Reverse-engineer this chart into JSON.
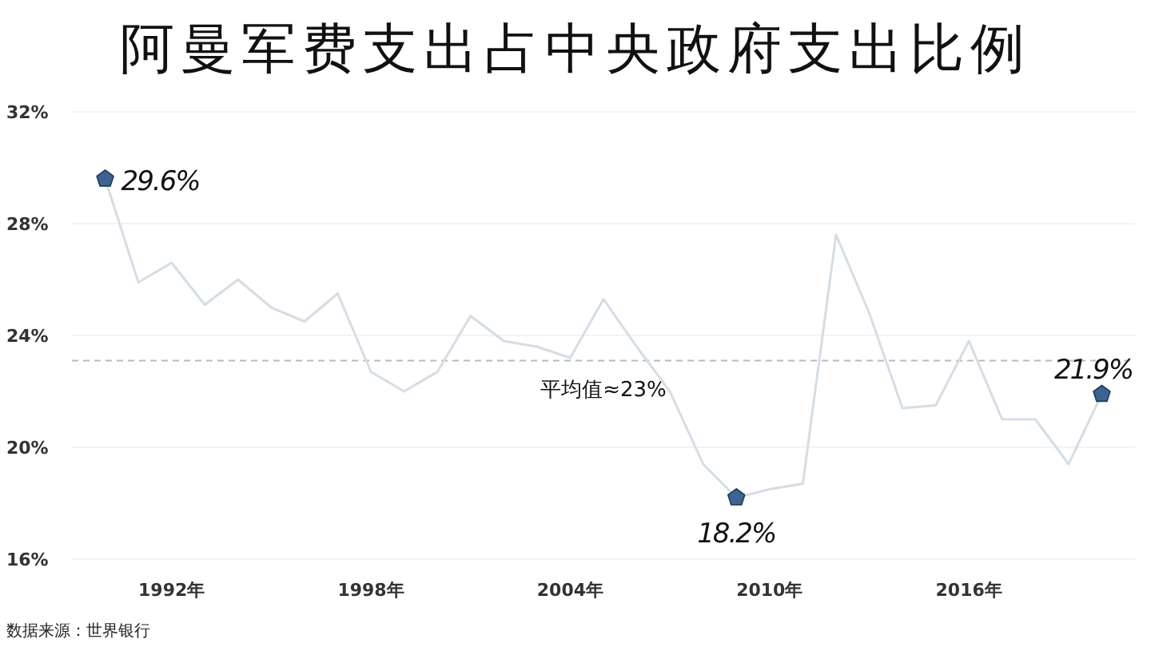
{
  "chart_data": {
    "type": "line",
    "title": "阿曼军费支出占中央政府支出比例",
    "x": [
      1990,
      1991,
      1992,
      1993,
      1994,
      1995,
      1996,
      1997,
      1998,
      1999,
      2000,
      2001,
      2002,
      2003,
      2004,
      2005,
      2006,
      2007,
      2008,
      2009,
      2010,
      2011,
      2012,
      2013,
      2014,
      2015,
      2016,
      2017,
      2018,
      2019,
      2020
    ],
    "series": [
      {
        "color": "#d5dde5",
        "values": [
          29.6,
          25.9,
          26.6,
          25.1,
          26.0,
          25.0,
          24.5,
          25.5,
          22.7,
          22.0,
          22.7,
          24.7,
          23.8,
          23.6,
          23.2,
          25.3,
          23.6,
          22.0,
          19.4,
          18.2,
          18.5,
          18.7,
          27.6,
          24.8,
          21.4,
          21.5,
          23.8,
          21.0,
          21.0,
          19.4,
          21.9
        ]
      },
      {
        "type": "scatter",
        "color": "#3d6491",
        "x": [
          1990,
          2009,
          2020
        ],
        "values": [
          29.6,
          18.2,
          21.9
        ],
        "value_labels": [
          "29.6%",
          "18.2%",
          "21.9%"
        ]
      }
    ],
    "xlim": [
      1989,
      2021
    ],
    "xticks": [
      {
        "value": 1992,
        "label": "1992年"
      },
      {
        "value": 1998,
        "label": "1998年"
      },
      {
        "value": 2004,
        "label": "2004年"
      },
      {
        "value": 2010,
        "label": "2010年"
      },
      {
        "value": 2016,
        "label": "2016年"
      }
    ],
    "ylim": [
      16,
      32
    ],
    "yticks": [
      {
        "value": 16,
        "label": "16%"
      },
      {
        "value": 20,
        "label": "20%"
      },
      {
        "value": 24,
        "label": "24%"
      },
      {
        "value": 28,
        "label": "28%"
      },
      {
        "value": 32,
        "label": "32%"
      }
    ],
    "grid": "y",
    "ref_lines": [
      {
        "axis": "y",
        "value": 23.1,
        "label": "平均值≈23%",
        "color": "#bbbbbb",
        "line_style": "dashed"
      }
    ],
    "annotations": [
      "数据来源：世界银行"
    ]
  }
}
